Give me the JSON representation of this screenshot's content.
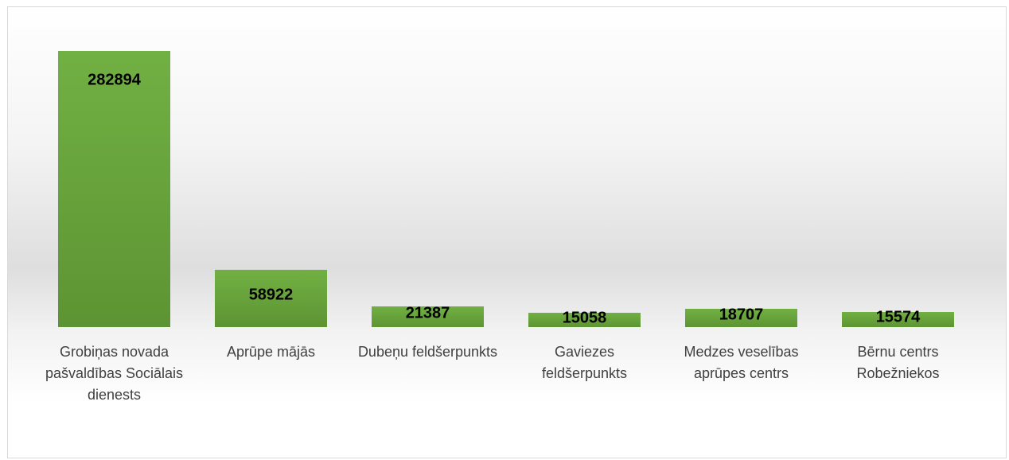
{
  "chart_data": {
    "type": "bar",
    "categories": [
      "Grobiņas novada pašvaldības Sociālais dienests",
      "Aprūpe mājās",
      "Dubeņu feldšerpunkts",
      "Gaviezes feldšerpunkts",
      "Medzes veselības aprūpes centrs",
      "Bērnu centrs Robežniekos"
    ],
    "values": [
      282894,
      58922,
      21387,
      15058,
      18707,
      15574
    ],
    "color": "#6aa63c"
  }
}
